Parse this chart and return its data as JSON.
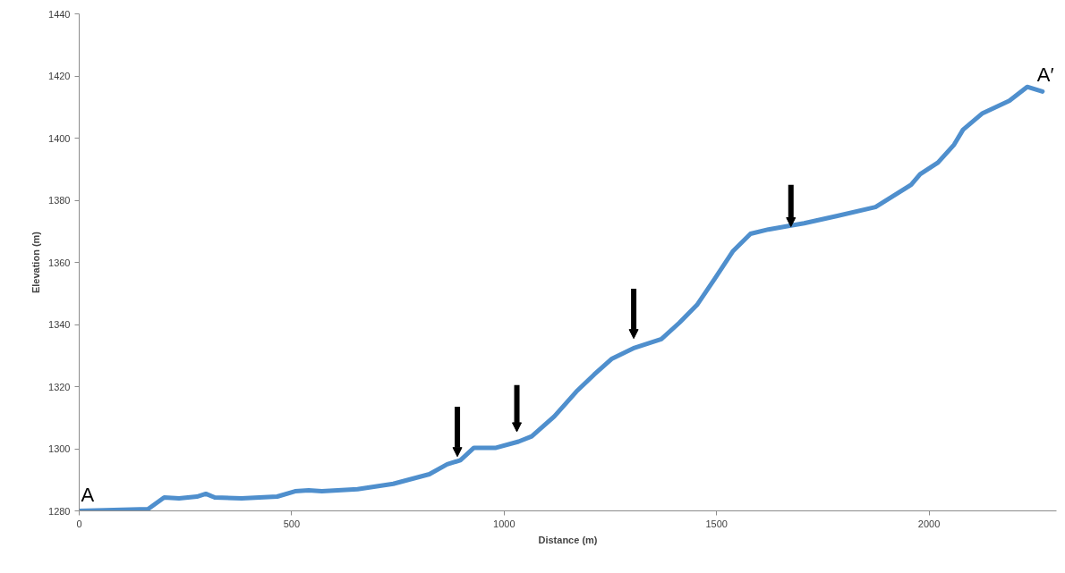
{
  "chart_data": {
    "type": "line",
    "xlabel": "Distance (m)",
    "ylabel": "Elevation (m)",
    "x": [
      0,
      162,
      200,
      235,
      277,
      298,
      319,
      382,
      466,
      508,
      540,
      571,
      655,
      739,
      824,
      866,
      897,
      929,
      981,
      1034,
      1065,
      1118,
      1170,
      1212,
      1254,
      1307,
      1370,
      1412,
      1454,
      1496,
      1538,
      1580,
      1622,
      1706,
      1782,
      1874,
      1958,
      1979,
      2021,
      2059,
      2080,
      2126,
      2189,
      2231,
      2267
    ],
    "series": [
      {
        "color": "#4f8fcd",
        "values": [
          1280,
          1280.6,
          1284.3,
          1284,
          1284.6,
          1285.5,
          1284.3,
          1284,
          1284.6,
          1286.3,
          1286.6,
          1286.3,
          1287,
          1288.7,
          1291.8,
          1295,
          1296.3,
          1300.3,
          1300.3,
          1302.3,
          1304,
          1310.4,
          1318.4,
          1323.9,
          1329,
          1332.5,
          1335.3,
          1340.5,
          1346.3,
          1354.8,
          1363.5,
          1369.2,
          1370.6,
          1372.6,
          1374.9,
          1377.8,
          1385,
          1388.4,
          1392.1,
          1397.9,
          1402.7,
          1408,
          1412,
          1416.5,
          1415
        ]
      }
    ],
    "xlim": [
      0,
      2300
    ],
    "xticks": [
      0,
      500,
      1000,
      1500,
      2000
    ],
    "ylim": [
      1280,
      1440
    ],
    "yticks": [
      1280,
      1300,
      1320,
      1340,
      1360,
      1380,
      1400,
      1420,
      1440
    ],
    "grid": false,
    "marker": "none",
    "line_style": "solid",
    "annotations": [
      {
        "text": "A",
        "x": 0,
        "y": 1280
      },
      {
        "text": "A′",
        "x": 2267,
        "y": 1415
      }
    ]
  }
}
